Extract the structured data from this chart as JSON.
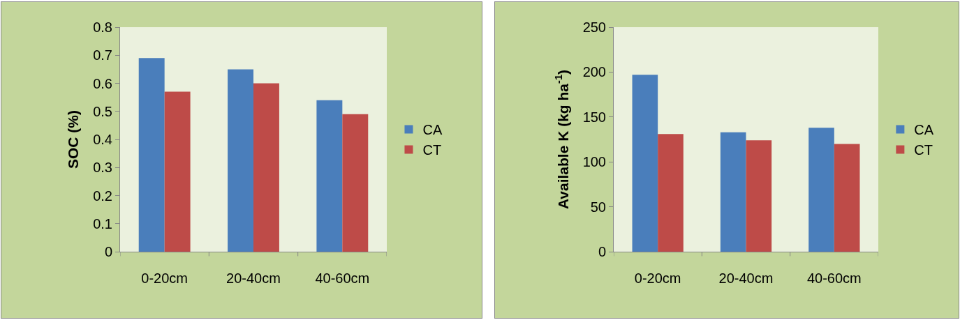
{
  "chart_data": [
    {
      "type": "bar",
      "ylabel": "SOC (%)",
      "categories": [
        "0-20cm",
        "20-40cm",
        "40-60cm"
      ],
      "series": [
        {
          "name": "CA",
          "color": "#4a7ebb",
          "values": [
            0.69,
            0.65,
            0.54
          ]
        },
        {
          "name": "CT",
          "color": "#be4b48",
          "values": [
            0.57,
            0.6,
            0.49
          ]
        }
      ],
      "ylim": [
        0,
        0.8
      ],
      "yticks": [
        0,
        0.1,
        0.2,
        0.3,
        0.4,
        0.5,
        0.6,
        0.7,
        0.8
      ],
      "grid": false,
      "legend": "right"
    },
    {
      "type": "bar",
      "ylabel": "Available K (kg ha$^{-1}$)",
      "categories": [
        "0-20cm",
        "20-40cm",
        "40-60cm"
      ],
      "series": [
        {
          "name": "CA",
          "color": "#4a7ebb",
          "values": [
            197,
            133,
            138
          ]
        },
        {
          "name": "CT",
          "color": "#be4b48",
          "values": [
            131,
            124,
            120
          ]
        }
      ],
      "ylim": [
        0,
        250
      ],
      "yticks": [
        0,
        50,
        100,
        150,
        200,
        250
      ],
      "grid": false,
      "legend": "right"
    }
  ]
}
